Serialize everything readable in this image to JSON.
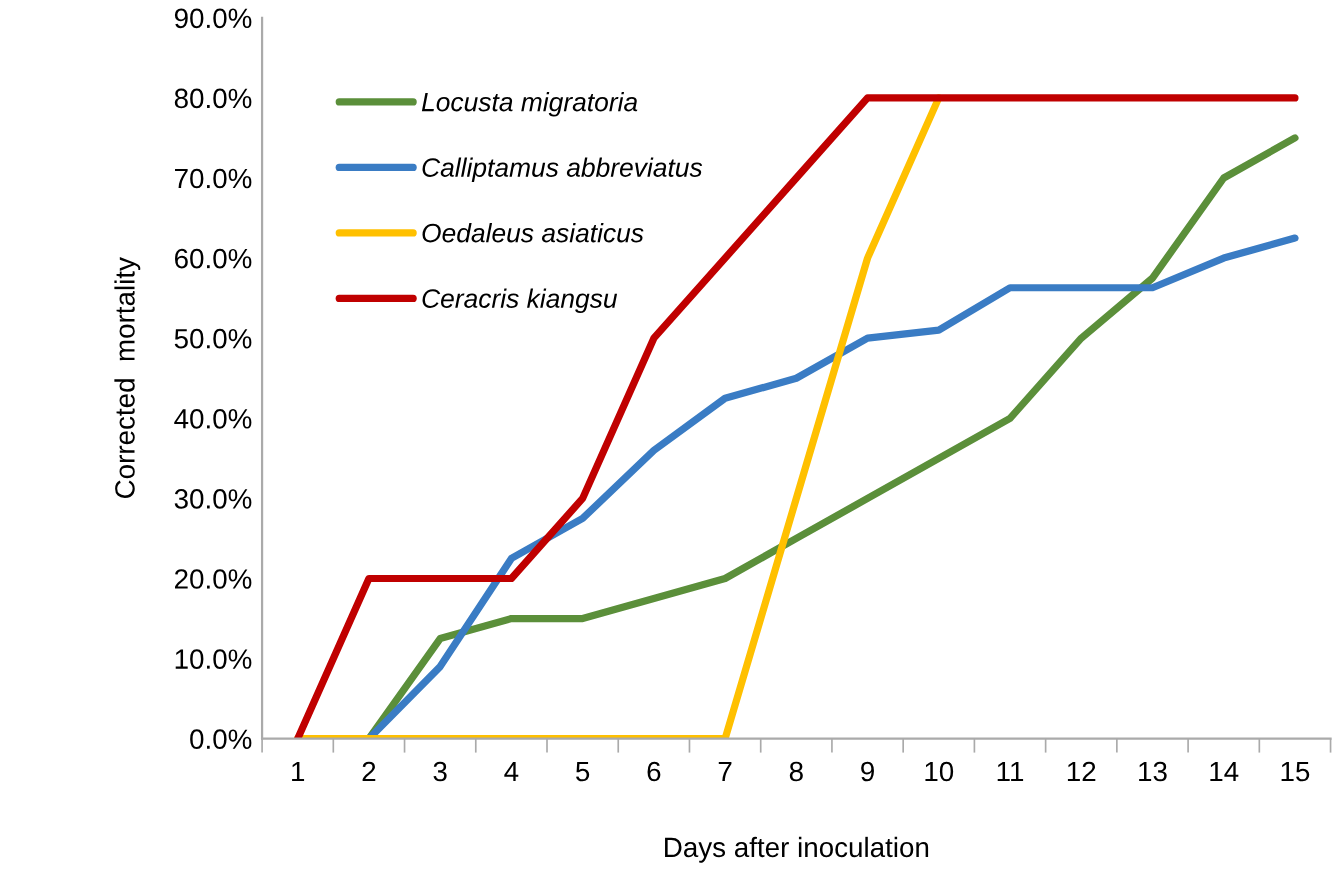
{
  "chart_data": {
    "type": "line",
    "xlabel": "Days after inoculation",
    "ylabel": "Corrected  mortality",
    "categories": [
      "1",
      "2",
      "3",
      "4",
      "5",
      "6",
      "7",
      "8",
      "9",
      "10",
      "11",
      "12",
      "13",
      "14",
      "15"
    ],
    "ylim": [
      0,
      90
    ],
    "yticks": [
      {
        "value": 0,
        "label": "0.0%"
      },
      {
        "value": 10,
        "label": "10.0%"
      },
      {
        "value": 20,
        "label": "20.0%"
      },
      {
        "value": 30,
        "label": "30.0%"
      },
      {
        "value": 40,
        "label": "40.0%"
      },
      {
        "value": 50,
        "label": "50.0%"
      },
      {
        "value": 60,
        "label": "60.0%"
      },
      {
        "value": 70,
        "label": "70.0%"
      },
      {
        "value": 80,
        "label": "80.0%"
      },
      {
        "value": 90,
        "label": "90.0%"
      }
    ],
    "grid": false,
    "legend": "top left",
    "marker": "none",
    "line_style": "solid",
    "series": [
      {
        "name": "Locusta migratoria",
        "color": "#5b8f3a",
        "values": [
          null,
          0,
          12.5,
          15,
          15,
          17.5,
          20,
          25,
          30,
          35,
          40,
          50,
          57.5,
          70,
          75
        ]
      },
      {
        "name": "Calliptamus abbreviatus",
        "color": "#3a7cc4",
        "values": [
          null,
          0,
          9,
          22.5,
          27.5,
          36,
          42.5,
          45,
          50,
          51,
          56.3,
          56.3,
          56.3,
          60,
          62.5
        ]
      },
      {
        "name": "Oedaleus asiaticus",
        "color": "#ffc000",
        "values": [
          0,
          0,
          0,
          0,
          0,
          0,
          0,
          30,
          60,
          80,
          null,
          null,
          null,
          null,
          null
        ]
      },
      {
        "name": "Ceracris kiangsu",
        "color": "#c00000",
        "values": [
          0,
          20,
          20,
          20,
          30,
          50,
          60,
          70,
          80,
          80,
          80,
          80,
          80,
          80,
          80
        ]
      }
    ]
  }
}
